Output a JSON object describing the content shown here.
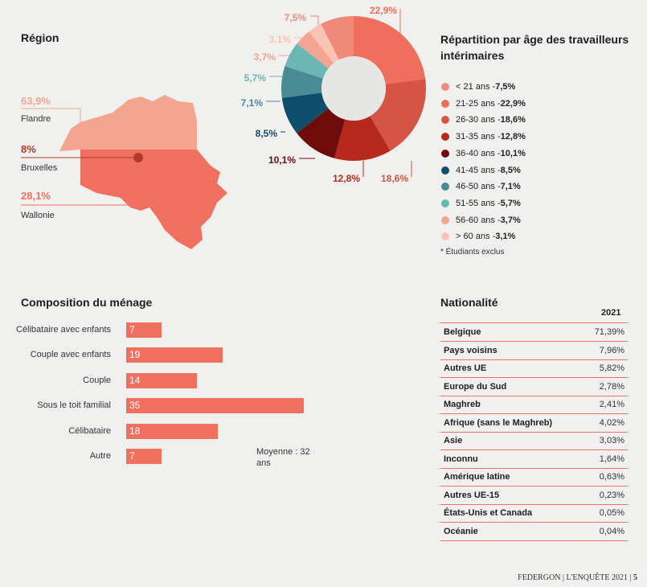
{
  "region": {
    "title": "Région",
    "items": [
      {
        "pct": "63,9%",
        "name": "Flandre",
        "color": "#f4a592"
      },
      {
        "pct": "8%",
        "name": "Bruxelles",
        "color": "#b23a2a"
      },
      {
        "pct": "28,1%",
        "name": "Wallonie",
        "color": "#f07060"
      }
    ]
  },
  "age": {
    "title": "Répartition par âge des travailleurs intérimaires",
    "note": "* Étudiants exclus",
    "chart_data": {
      "type": "pie",
      "title": "Répartition par âge des travailleurs intérimaires",
      "categories": [
        "< 21 ans",
        "21-25 ans",
        "26-30 ans",
        "31-35 ans",
        "36-40 ans",
        "41-45 ans",
        "46-50 ans",
        "51-55 ans",
        "56-60 ans",
        "> 60 ans"
      ],
      "values": [
        7.5,
        22.9,
        18.6,
        12.8,
        10.1,
        8.5,
        7.1,
        5.7,
        3.7,
        3.1
      ],
      "labels": [
        "7,5%",
        "22,9%",
        "18,6%",
        "12,8%",
        "10,1%",
        "8,5%",
        "7,1%",
        "5,7%",
        "3,7%",
        "3,1%"
      ],
      "colors": [
        "#f08a78",
        "#f06e5e",
        "#d45545",
        "#b8291d",
        "#6e0c0c",
        "#0f4e6a",
        "#4a8a94",
        "#6cb6b4",
        "#f4a592",
        "#f8c4b4"
      ]
    }
  },
  "household": {
    "title": "Composition du ménage",
    "note": "Moyenne : 32 ans",
    "chart_data": {
      "type": "bar",
      "categories": [
        "Célibataire avec enfants",
        "Couple avec enfants",
        "Couple",
        "Sous le toit familial",
        "Célibataire",
        "Autre"
      ],
      "values": [
        7,
        19,
        14,
        35,
        18,
        7
      ],
      "labels": [
        "7",
        "19",
        "14",
        "35",
        "18",
        "7"
      ]
    }
  },
  "nationality": {
    "title": "Nationalité",
    "year": "2021",
    "rows": [
      {
        "name": "Belgique",
        "value": "71,39%"
      },
      {
        "name": "Pays voisins",
        "value": "7,96%"
      },
      {
        "name": "Autres UE",
        "value": "5,82%"
      },
      {
        "name": "Europe du Sud",
        "value": "2,78%"
      },
      {
        "name": "Maghreb",
        "value": "2,41%"
      },
      {
        "name": "Afrique (sans le Maghreb)",
        "value": "4,02%"
      },
      {
        "name": "Asie",
        "value": "3,03%"
      },
      {
        "name": "Inconnu",
        "value": "1,64%"
      },
      {
        "name": "Amérique latine",
        "value": "0,63%"
      },
      {
        "name": "Autres UE-15",
        "value": "0,23%"
      },
      {
        "name": "États-Unis et Canada",
        "value": "0,05%"
      },
      {
        "name": "Océanie",
        "value": "0,04%"
      }
    ]
  },
  "footer": {
    "text": "FEDERGON  |  L'ENQUÊTE 2021  |",
    "page": "5"
  }
}
